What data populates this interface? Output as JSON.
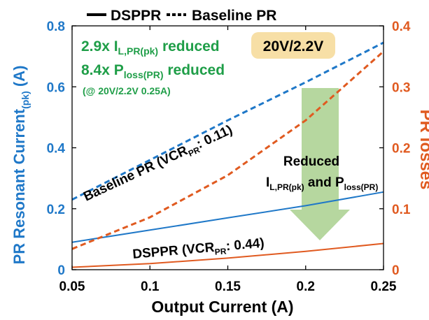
{
  "chart_data": {
    "type": "line",
    "title": "",
    "xlabel": "Output Current (A)",
    "ylabel_left_main": "PR Resonant Current",
    "ylabel_left_sub": "(pk)",
    "ylabel_left_tail": " (A)",
    "ylabel_right": "PR losses",
    "xlim": [
      0.05,
      0.25
    ],
    "ylim_left": [
      0,
      0.8
    ],
    "ylim_right": [
      0,
      0.4
    ],
    "x_ticks": [
      0.05,
      0.1,
      0.15,
      0.2,
      0.25
    ],
    "x_tick_labels": [
      "0.05",
      "0.1",
      "0.15",
      "0.2",
      "0.25"
    ],
    "y_left_ticks": [
      0,
      0.2,
      0.4,
      0.6,
      0.8
    ],
    "y_left_tick_labels": [
      "0",
      "0.2",
      "0.4",
      "0.6",
      "0.8"
    ],
    "y_right_ticks": [
      0,
      0.1,
      0.2,
      0.3,
      0.4
    ],
    "y_right_tick_labels": [
      "0",
      "0.1",
      "0.2",
      "0.3",
      "0.4"
    ],
    "grid": false,
    "legend_position": "top",
    "legend": [
      {
        "label": "DSPPR",
        "style": "solid"
      },
      {
        "label": "Baseline PR",
        "style": "dashed"
      }
    ],
    "series": [
      {
        "name": "DSPPR",
        "axis": "left",
        "style": "solid",
        "color": "#1f78c8",
        "x": [
          0.05,
          0.1,
          0.15,
          0.2,
          0.25
        ],
        "y": [
          0.09,
          0.13,
          0.17,
          0.21,
          0.255
        ]
      },
      {
        "name": "Baseline PR",
        "axis": "left",
        "style": "dashed",
        "color": "#1f78c8",
        "x": [
          0.05,
          0.1,
          0.15,
          0.2,
          0.25
        ],
        "y": [
          0.23,
          0.36,
          0.49,
          0.615,
          0.745
        ]
      },
      {
        "name": "DSPPR",
        "axis": "right",
        "style": "solid",
        "color": "#e05a20",
        "x": [
          0.05,
          0.1,
          0.15,
          0.2,
          0.25
        ],
        "y": [
          0.004,
          0.01,
          0.019,
          0.03,
          0.043
        ]
      },
      {
        "name": "Baseline PR",
        "axis": "right",
        "style": "dashed",
        "color": "#e05a20",
        "x": [
          0.05,
          0.1,
          0.15,
          0.2,
          0.25
        ],
        "y": [
          0.034,
          0.086,
          0.155,
          0.245,
          0.358
        ]
      }
    ],
    "annotations": {
      "improve_1_pre": "2.9x I",
      "improve_1_sub": "L,PR(pk)",
      "improve_1_post": " reduced",
      "improve_2_pre": "8.4x P",
      "improve_2_sub": "loss(PR)",
      "improve_2_post": " reduced",
      "improve_3": "(@ 20V/2.2V 0.25A)",
      "badge": "20V/2.2V",
      "baseline_label_pre": "Baseline PR (VCR",
      "baseline_label_sub": "PR",
      "baseline_label_post": ": 0.11)",
      "dsppr_label_pre": "DSPPR (VCR",
      "dsppr_label_sub": "PR",
      "dsppr_label_post": ": 0.44)",
      "reduced_line1": "Reduced",
      "reduced_l_pre": "I",
      "reduced_l_sub": "L,PR(pk)",
      "reduced_and": " and P",
      "reduced_p_sub": "loss(PR)"
    },
    "colors": {
      "left_axis": "#1f78c8",
      "right_axis": "#e05a20",
      "annotation_green": "#1f9e48",
      "arrow_green": "#a9d08e",
      "badge_fill": "#f7dfa6"
    }
  }
}
